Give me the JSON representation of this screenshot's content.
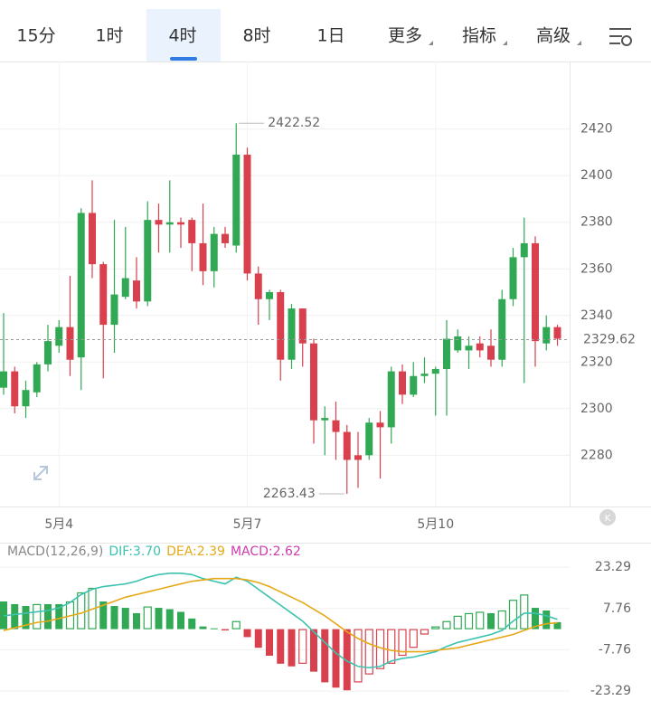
{
  "tabs": [
    "15分",
    "1时",
    "4时",
    "8时",
    "1日",
    "更多",
    "指标",
    "高级"
  ],
  "selected_tab": 2,
  "chart_data": [
    {
      "type": "candlestick",
      "categories": [
        null,
        null,
        null,
        null,
        null,
        "5月4",
        null,
        null,
        null,
        null,
        null,
        null,
        null,
        null,
        null,
        null,
        null,
        null,
        null,
        null,
        null,
        null,
        "5月7",
        null,
        null,
        null,
        null,
        null,
        null,
        null,
        null,
        null,
        null,
        null,
        null,
        null,
        null,
        null,
        null,
        "5月10",
        null,
        null,
        null,
        null,
        null,
        null,
        null,
        null,
        null,
        null,
        null
      ],
      "open": [
        2309,
        2316,
        2301,
        2307,
        2319,
        2327,
        2335,
        2322,
        2384,
        2362,
        2336,
        2348,
        2355,
        2346,
        2381,
        2379,
        2380,
        2381,
        2371,
        2359,
        2375,
        2370,
        2409,
        2358,
        2347,
        2350,
        2321,
        2343,
        2328,
        2295,
        2295,
        2290,
        2280,
        2280,
        2294,
        2292,
        2316,
        2306,
        2314,
        2315,
        2317,
        2325,
        2325,
        2328,
        2327,
        2321,
        2347,
        2365,
        2371,
        2328,
        2335
      ],
      "high": [
        2341,
        2318,
        2312,
        2320,
        2336,
        2338,
        2357,
        2386,
        2398,
        2363,
        2381,
        2378,
        2365,
        2389,
        2388,
        2398,
        2382,
        2382,
        2388,
        2378,
        2378,
        2422.52,
        2412,
        2361,
        2351,
        2351,
        2345,
        2343,
        2330,
        2301,
        2303,
        2293,
        2290,
        2296,
        2299,
        2318,
        2319,
        2320,
        2322,
        2318,
        2338,
        2334,
        2331,
        2331,
        2334,
        2351,
        2369,
        2382,
        2374,
        2340,
        2336
      ],
      "low": [
        2306,
        2298,
        2296,
        2305,
        2316,
        2324,
        2314,
        2308,
        2356,
        2313,
        2324,
        2347,
        2343,
        2344,
        2367,
        2367,
        2369,
        2359,
        2353,
        2352,
        2369,
        2367,
        2355,
        2336,
        2338,
        2312,
        2317,
        2318,
        2285,
        2280,
        2278,
        2263.43,
        2266,
        2278,
        2270,
        2285,
        2302,
        2305,
        2311,
        2297,
        2297,
        2324,
        2317,
        2322,
        2318,
        2318,
        2344,
        2311,
        2318,
        2325,
        2327
      ],
      "close": [
        2316,
        2301,
        2308,
        2319,
        2329,
        2335,
        2321,
        2384,
        2362,
        2336,
        2349,
        2356,
        2346,
        2381,
        2379,
        2380,
        2379,
        2371,
        2359,
        2375,
        2371,
        2409,
        2358,
        2347,
        2350,
        2321,
        2343,
        2328,
        2295,
        2296,
        2290,
        2278,
        2278,
        2294,
        2292,
        2316,
        2306,
        2314,
        2315,
        2317,
        2330,
        2331,
        2327,
        2325,
        2321,
        2347,
        2365,
        2371,
        2329,
        2335,
        2330
      ],
      "up_color": "#30a854",
      "down_color": "#d8404e",
      "ylim": [
        2258,
        2449
      ],
      "yticks": [
        2280,
        2300,
        2320,
        2340,
        2360,
        2380,
        2400,
        2420
      ],
      "grid": true,
      "last_price": 2329.62,
      "last_price_color": "#d8404e"
    },
    {
      "type": "combo",
      "legend": [
        "MACD(12,26,9)",
        "DIF:3.70",
        "DEA:2.39",
        "MACD:2.62"
      ],
      "legend_colors": [
        "#888888",
        "#3cc2b0",
        "#e6a817",
        "#d03ab0"
      ],
      "series": [
        {
          "kind": "bar",
          "up_color": "#30a854",
          "down_color": "#d8404e",
          "values": [
            10.4,
            9.4,
            8.7,
            9.4,
            9.4,
            9.4,
            10.4,
            13.8,
            15.5,
            10.4,
            8.7,
            8,
            6,
            8.5,
            8,
            7.5,
            6.5,
            4,
            1,
            0.3,
            -0.5,
            3,
            -3,
            -7,
            -10,
            -13,
            -14,
            -13,
            -16,
            -20,
            -22,
            -23,
            -20,
            -17,
            -15,
            -13,
            -10,
            -7,
            -2,
            1,
            3,
            5,
            6,
            6.5,
            6,
            7,
            11,
            13,
            8,
            7,
            2.62
          ]
        },
        {
          "kind": "line",
          "color": "#3cc2b0",
          "values": [
            5,
            5.5,
            6,
            6.5,
            7,
            8,
            10,
            13,
            15,
            16,
            16.5,
            17,
            18,
            19.5,
            20.5,
            21,
            21,
            20.5,
            19,
            18,
            17,
            19.5,
            18,
            15,
            12,
            9,
            6,
            3,
            -1,
            -5,
            -9,
            -12,
            -14,
            -14.5,
            -14,
            -12,
            -11,
            -10.5,
            -9.5,
            -8.5,
            -6.5,
            -5,
            -4,
            -3,
            -2,
            -0.5,
            3,
            6,
            6,
            5,
            3.7
          ]
        },
        {
          "kind": "line",
          "color": "#e6a817",
          "values": [
            -0.5,
            0.5,
            1.5,
            2.5,
            3,
            4,
            5,
            6,
            7.5,
            9,
            10.5,
            12,
            13,
            14,
            15,
            16,
            17,
            18,
            18.5,
            19,
            19,
            19,
            18.5,
            17.5,
            16,
            14,
            12,
            10,
            7.5,
            5,
            2,
            -1,
            -3.5,
            -5.5,
            -7,
            -8,
            -8.5,
            -8.5,
            -8.5,
            -8,
            -7.5,
            -7,
            -6,
            -5,
            -4,
            -3,
            -2,
            -0.5,
            1,
            2,
            2.39
          ]
        }
      ],
      "ylim": [
        -27,
        30.8
      ],
      "yticks": [
        23.29,
        7.76,
        -7.76,
        -23.29
      ],
      "grid": true
    }
  ]
}
